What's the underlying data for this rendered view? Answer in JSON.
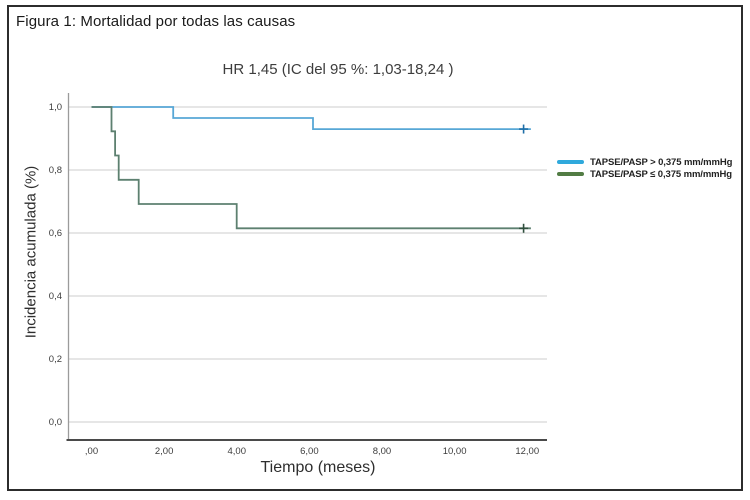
{
  "figure": {
    "title": "Figura 1: Mortalidad por todas las causas"
  },
  "colors": {
    "border": "#2c2c2c",
    "background": "#ffffff",
    "gridline": "#d8d8d8",
    "axis_left": "#9b9b9b",
    "axis_bottom": "#4a4a4a",
    "tick_text": "#3d3d3d"
  },
  "chart_data": {
    "type": "line",
    "subtype": "kaplan_meier_step",
    "title": "HR 1,45 (IC del 95 %: 1,03-18,24 )",
    "xlabel": "Tiempo (meses)",
    "ylabel": "Incidencia acumulada (%)",
    "xlim": [
      0,
      12.6
    ],
    "ylim": [
      0,
      1.05
    ],
    "grid": "horizontal_only",
    "legend_position": "right_middle",
    "xticks": [
      {
        "value": 0,
        "label": ",00"
      },
      {
        "value": 2,
        "label": "2,00"
      },
      {
        "value": 4,
        "label": "4,00"
      },
      {
        "value": 6,
        "label": "6,00"
      },
      {
        "value": 8,
        "label": "8,00"
      },
      {
        "value": 10,
        "label": "10,00"
      },
      {
        "value": 12,
        "label": "12,00"
      }
    ],
    "yticks": [
      {
        "value": 0.0,
        "label": "0,0"
      },
      {
        "value": 0.2,
        "label": "0,2"
      },
      {
        "value": 0.4,
        "label": "0,4"
      },
      {
        "value": 0.6,
        "label": "0,6"
      },
      {
        "value": 0.8,
        "label": "0,8"
      },
      {
        "value": 1.0,
        "label": "1,0"
      }
    ],
    "series": [
      {
        "name": "TAPSE/PASP > 0,375 mm/mmHg",
        "line_color": "#57a7d6",
        "swatch_color": "#2fa9dc",
        "censor_color": "#1f6fa8",
        "steps": [
          [
            0,
            1.0
          ],
          [
            2.25,
            1.0
          ],
          [
            2.25,
            0.965
          ],
          [
            6.1,
            0.965
          ],
          [
            6.1,
            0.93
          ],
          [
            12.1,
            0.93
          ]
        ],
        "censor_marks": [
          [
            11.9,
            0.93
          ]
        ]
      },
      {
        "name": "TAPSE/PASP ≤ 0,375 mm/mmHg",
        "line_color": "#5d8070",
        "swatch_color": "#527c44",
        "censor_color": "#2f4f3d",
        "steps": [
          [
            0,
            1.0
          ],
          [
            0.55,
            1.0
          ],
          [
            0.55,
            0.923
          ],
          [
            0.65,
            0.923
          ],
          [
            0.65,
            0.846
          ],
          [
            0.75,
            0.846
          ],
          [
            0.75,
            0.769
          ],
          [
            1.3,
            0.769
          ],
          [
            1.3,
            0.692
          ],
          [
            4.0,
            0.692
          ],
          [
            4.0,
            0.615
          ],
          [
            12.1,
            0.615
          ]
        ],
        "censor_marks": [
          [
            11.9,
            0.615
          ]
        ]
      }
    ]
  }
}
